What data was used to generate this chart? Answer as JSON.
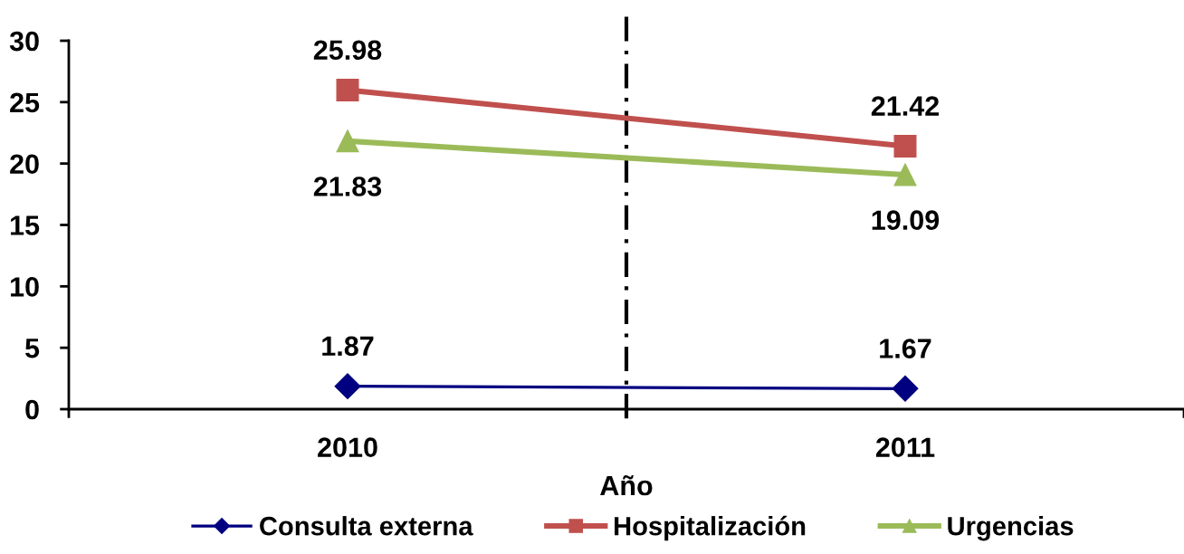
{
  "chart_data": {
    "type": "line",
    "xlabel": "Año",
    "categories": [
      "2010",
      "2011"
    ],
    "series": [
      {
        "name": "Consulta externa",
        "color": "#000080",
        "values": [
          1.87,
          1.67
        ],
        "marker": "diamond"
      },
      {
        "name": "Hospitalización",
        "color": "#c0504d",
        "values": [
          25.98,
          21.42
        ],
        "marker": "square"
      },
      {
        "name": "Urgencias",
        "color": "#9bbb59",
        "values": [
          21.83,
          19.09
        ],
        "marker": "triangle"
      }
    ],
    "ylim": [
      0,
      30
    ],
    "yticks": [
      0,
      5,
      10,
      15,
      20,
      25,
      30
    ],
    "data_labels": true,
    "legend": "bottom",
    "grid": false,
    "line_style": "solid"
  }
}
